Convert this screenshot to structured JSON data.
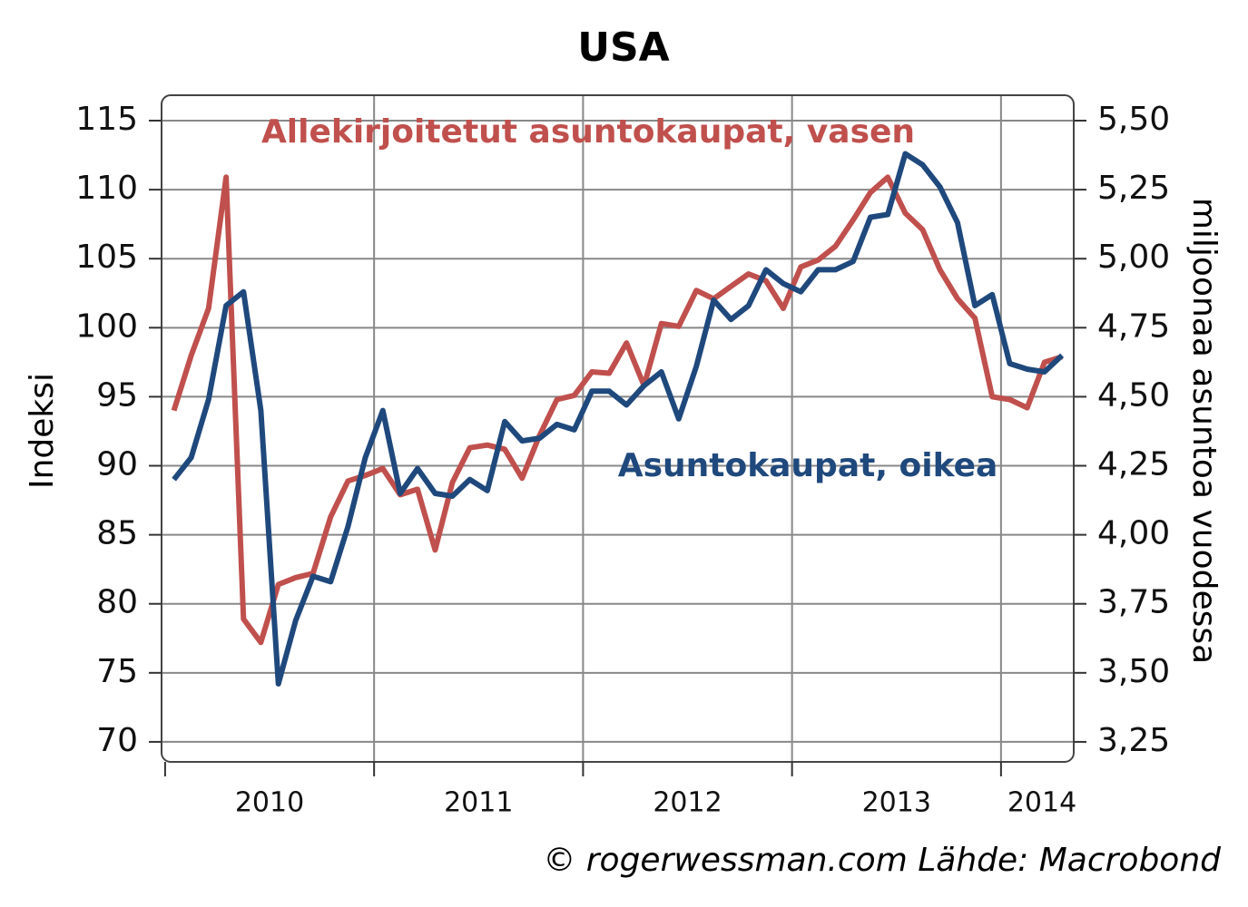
{
  "chart_data": {
    "type": "line",
    "title": "USA",
    "ylabel": "Indeksi",
    "y2label": "miljoonaa asuntoa vuodessa",
    "annotations": [
      "Allekirjoitetut asuntokaupat, vasen",
      "Asuntokaupat, oikea"
    ],
    "source": "© rogerwessman.com Lähde: Macrobond",
    "x": [
      2010.042,
      2010.125,
      2010.208,
      2010.292,
      2010.375,
      2010.458,
      2010.542,
      2010.625,
      2010.708,
      2010.792,
      2010.875,
      2010.958,
      2011.042,
      2011.125,
      2011.208,
      2011.292,
      2011.375,
      2011.458,
      2011.542,
      2011.625,
      2011.708,
      2011.792,
      2011.875,
      2011.958,
      2012.042,
      2012.125,
      2012.208,
      2012.292,
      2012.375,
      2012.458,
      2012.542,
      2012.625,
      2012.708,
      2012.792,
      2012.875,
      2012.958,
      2013.042,
      2013.125,
      2013.208,
      2013.292,
      2013.375,
      2013.458,
      2013.542,
      2013.625,
      2013.708,
      2013.792,
      2013.875,
      2013.958,
      2014.042,
      2014.125,
      2014.208,
      2014.292
    ],
    "xlim": [
      2009.983,
      2014.348
    ],
    "xticks": [
      2010,
      2011,
      2012,
      2013,
      2014
    ],
    "ylim": [
      68.55,
      116.84
    ],
    "yticks": [
      70,
      75,
      80,
      85,
      90,
      95,
      100,
      105,
      110,
      115
    ],
    "y2lim": [
      3.1775,
      5.592
    ],
    "y2ticks": [
      {
        "value": 3.25,
        "label": "3,25"
      },
      {
        "value": 3.5,
        "label": "3,50"
      },
      {
        "value": 3.75,
        "label": "3,75"
      },
      {
        "value": 4.0,
        "label": "4,00"
      },
      {
        "value": 4.25,
        "label": "4,25"
      },
      {
        "value": 4.5,
        "label": "4,50"
      },
      {
        "value": 4.75,
        "label": "4,75"
      },
      {
        "value": 5.0,
        "label": "5,00"
      },
      {
        "value": 5.25,
        "label": "5,25"
      },
      {
        "value": 5.5,
        "label": "5,50"
      }
    ],
    "grid": true,
    "series": [
      {
        "name": "Allekirjoitetut asuntokaupat",
        "color": "#c0504d",
        "axis": "y",
        "values": [
          94.0,
          98.0,
          101.4,
          110.9,
          78.9,
          77.2,
          81.4,
          81.9,
          82.2,
          86.3,
          88.9,
          89.3,
          89.8,
          87.9,
          88.3,
          83.9,
          88.8,
          91.3,
          91.5,
          91.2,
          89.1,
          92.2,
          94.8,
          95.1,
          96.8,
          96.7,
          98.9,
          95.8,
          100.3,
          100.1,
          102.7,
          102.1,
          103.0,
          103.9,
          103.4,
          101.4,
          104.4,
          104.9,
          105.9,
          107.8,
          109.8,
          110.9,
          108.3,
          107.1,
          104.2,
          102.1,
          100.7,
          95.0,
          94.8,
          94.2,
          97.5,
          97.9
        ]
      },
      {
        "name": "Asuntokaupat",
        "color": "#1f497d",
        "axis": "y2",
        "values": [
          4.2,
          4.28,
          4.49,
          4.83,
          4.88,
          4.45,
          3.46,
          3.69,
          3.85,
          3.83,
          4.03,
          4.28,
          4.45,
          4.15,
          4.24,
          4.15,
          4.14,
          4.2,
          4.16,
          4.41,
          4.34,
          4.35,
          4.4,
          4.38,
          4.52,
          4.52,
          4.47,
          4.54,
          4.59,
          4.42,
          4.61,
          4.85,
          4.78,
          4.83,
          4.96,
          4.91,
          4.88,
          4.96,
          4.96,
          4.99,
          5.15,
          5.16,
          5.38,
          5.34,
          5.26,
          5.13,
          4.83,
          4.87,
          4.62,
          4.6,
          4.59,
          4.65
        ]
      }
    ]
  }
}
